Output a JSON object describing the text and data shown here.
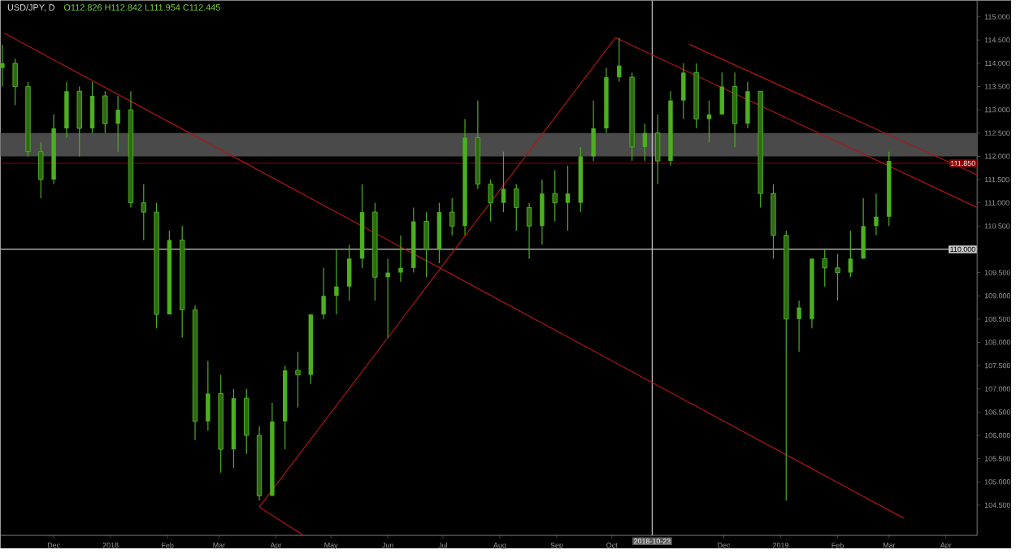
{
  "chart_data": {
    "type": "candlestick",
    "title": "USD/JPY, D",
    "subtitle": "O112.826 H112.842 L111.954 C112.445",
    "xlim": [
      "2017-11-02",
      "2019-04-18"
    ],
    "ylim": [
      103.85,
      115.35
    ],
    "xticks": [
      {
        "value": "2017-12-01",
        "label": "Dec"
      },
      {
        "value": "2018-01-01",
        "label": "2018"
      },
      {
        "value": "2018-02-01",
        "label": "Feb"
      },
      {
        "value": "2018-03-01",
        "label": "Mar"
      },
      {
        "value": "2018-04-01",
        "label": "Apr"
      },
      {
        "value": "2018-05-01",
        "label": "May"
      },
      {
        "value": "2018-06-01",
        "label": "Jun"
      },
      {
        "value": "2018-07-01",
        "label": "Jul"
      },
      {
        "value": "2018-08-01",
        "label": "Aug"
      },
      {
        "value": "2018-09-01",
        "label": "Sep"
      },
      {
        "value": "2018-10-01",
        "label": "Oct"
      },
      {
        "value": "2018-12-01",
        "label": "Dec"
      },
      {
        "value": "2019-01-01",
        "label": "2019"
      },
      {
        "value": "2019-02-01",
        "label": "Feb"
      },
      {
        "value": "2019-03-01",
        "label": "Mar"
      },
      {
        "value": "2019-04-01",
        "label": "Apr"
      }
    ],
    "yticks": [
      {
        "value": 104.5,
        "label": "104.500"
      },
      {
        "value": 105,
        "label": "105.000"
      },
      {
        "value": 105.5,
        "label": "105.500"
      },
      {
        "value": 106,
        "label": "106.000"
      },
      {
        "value": 106.5,
        "label": "106.500"
      },
      {
        "value": 107,
        "label": "107.000"
      },
      {
        "value": 107.5,
        "label": "107.500"
      },
      {
        "value": 108,
        "label": "108.000"
      },
      {
        "value": 108.5,
        "label": "108.500"
      },
      {
        "value": 109,
        "label": "109.000"
      },
      {
        "value": 109.5,
        "label": "109.500"
      },
      {
        "value": 110.5,
        "label": "110.500"
      },
      {
        "value": 111,
        "label": "111.000"
      },
      {
        "value": 111.5,
        "label": "111.500"
      },
      {
        "value": 112,
        "label": "112.000"
      },
      {
        "value": 112.5,
        "label": "112.500"
      },
      {
        "value": 113,
        "label": "113.000"
      },
      {
        "value": 113.5,
        "label": "113.500"
      },
      {
        "value": 114,
        "label": "114.000"
      },
      {
        "value": 114.5,
        "label": "114.500"
      },
      {
        "value": 115,
        "label": "115.000"
      }
    ],
    "bands": [
      {
        "axis": "y",
        "from": 112.0,
        "to": 112.5,
        "color": "#4a4a4a"
      }
    ],
    "ref_lines": [
      {
        "axis": "y",
        "value": 111.85,
        "label": "111.850",
        "color": "#8b0000"
      },
      {
        "axis": "y",
        "value": 110.0,
        "label": "110.000",
        "color": "#c8c8c8"
      },
      {
        "axis": "x",
        "value": "2018-10-23",
        "label": "2018-10-23",
        "color": "#c8c8c8"
      }
    ],
    "series": [
      {
        "color": "#4caf1f",
        "x": [
          "2017-11-03",
          "2017-11-10",
          "2017-11-17",
          "2017-11-24",
          "2017-12-01",
          "2017-12-08",
          "2017-12-15",
          "2017-12-22",
          "2017-12-29",
          "2018-01-05",
          "2018-01-12",
          "2018-01-19",
          "2018-01-26",
          "2018-02-02",
          "2018-02-09",
          "2018-02-16",
          "2018-02-23",
          "2018-03-02",
          "2018-03-09",
          "2018-03-16",
          "2018-03-23",
          "2018-03-30",
          "2018-04-06",
          "2018-04-13",
          "2018-04-20",
          "2018-04-27",
          "2018-05-04",
          "2018-05-11",
          "2018-05-18",
          "2018-05-25",
          "2018-06-01",
          "2018-06-08",
          "2018-06-15",
          "2018-06-22",
          "2018-06-29",
          "2018-07-06",
          "2018-07-13",
          "2018-07-20",
          "2018-07-27",
          "2018-08-03",
          "2018-08-10",
          "2018-08-17",
          "2018-08-24",
          "2018-08-31",
          "2018-09-07",
          "2018-09-14",
          "2018-09-21",
          "2018-09-28",
          "2018-10-05",
          "2018-10-12",
          "2018-10-19",
          "2018-10-26",
          "2018-11-02",
          "2018-11-09",
          "2018-11-16",
          "2018-11-23",
          "2018-11-30",
          "2018-12-07",
          "2018-12-14",
          "2018-12-21",
          "2018-12-28",
          "2019-01-04",
          "2019-01-11",
          "2019-01-18",
          "2019-01-25",
          "2019-02-01",
          "2019-02-08",
          "2019-02-15",
          "2019-02-22",
          "2019-03-01"
        ],
        "ohlc": [
          [
            113.9,
            114.4,
            113.5,
            114.0
          ],
          [
            114.0,
            114.1,
            113.1,
            113.5
          ],
          [
            113.5,
            113.6,
            112.0,
            112.1
          ],
          [
            112.1,
            112.3,
            111.1,
            111.5
          ],
          [
            111.5,
            112.9,
            111.4,
            112.6
          ],
          [
            112.6,
            113.6,
            112.4,
            113.4
          ],
          [
            113.4,
            113.5,
            112.0,
            112.6
          ],
          [
            112.6,
            113.6,
            112.5,
            113.3
          ],
          [
            113.3,
            113.4,
            112.5,
            112.7
          ],
          [
            112.7,
            113.3,
            112.1,
            113.0
          ],
          [
            113.0,
            113.4,
            110.9,
            111.0
          ],
          [
            111.0,
            111.4,
            110.2,
            110.8
          ],
          [
            110.8,
            111.0,
            108.3,
            108.6
          ],
          [
            108.6,
            110.4,
            108.6,
            110.2
          ],
          [
            110.2,
            110.5,
            108.1,
            108.7
          ],
          [
            108.7,
            108.8,
            105.9,
            106.3
          ],
          [
            106.3,
            107.6,
            106.1,
            106.9
          ],
          [
            106.9,
            107.3,
            105.2,
            105.7
          ],
          [
            105.7,
            107.0,
            105.3,
            106.8
          ],
          [
            106.8,
            107.0,
            105.6,
            106.0
          ],
          [
            106.0,
            106.2,
            104.6,
            104.7
          ],
          [
            104.7,
            106.7,
            104.7,
            106.3
          ],
          [
            106.3,
            107.5,
            105.7,
            107.4
          ],
          [
            107.4,
            107.8,
            106.6,
            107.3
          ],
          [
            107.3,
            108.6,
            107.1,
            108.6
          ],
          [
            108.6,
            109.6,
            108.5,
            109.0
          ],
          [
            109.0,
            110.0,
            108.6,
            109.2
          ],
          [
            109.2,
            110.1,
            108.9,
            109.8
          ],
          [
            109.8,
            111.4,
            109.6,
            110.8
          ],
          [
            110.8,
            111.0,
            108.9,
            109.4
          ],
          [
            109.4,
            109.8,
            108.1,
            109.5
          ],
          [
            109.5,
            110.3,
            109.3,
            109.6
          ],
          [
            109.6,
            110.9,
            109.5,
            110.6
          ],
          [
            110.6,
            110.8,
            109.4,
            110.0
          ],
          [
            110.0,
            111.0,
            109.7,
            110.8
          ],
          [
            110.8,
            111.1,
            110.3,
            110.5
          ],
          [
            110.5,
            112.8,
            110.3,
            112.4
          ],
          [
            112.4,
            113.2,
            111.3,
            111.4
          ],
          [
            111.4,
            111.5,
            110.6,
            111.0
          ],
          [
            111.0,
            112.1,
            110.8,
            111.3
          ],
          [
            111.3,
            111.4,
            110.4,
            110.9
          ],
          [
            110.9,
            111.0,
            109.8,
            110.5
          ],
          [
            110.5,
            111.5,
            110.1,
            111.2
          ],
          [
            111.2,
            111.7,
            110.6,
            111.0
          ],
          [
            111.0,
            111.8,
            110.4,
            111.2
          ],
          [
            111.0,
            112.2,
            110.8,
            112.0
          ],
          [
            112.0,
            113.2,
            111.9,
            112.6
          ],
          [
            112.6,
            113.9,
            112.5,
            113.7
          ],
          [
            113.7,
            114.55,
            113.6,
            113.95
          ],
          [
            113.7,
            113.8,
            111.9,
            112.2
          ],
          [
            112.2,
            112.7,
            111.9,
            112.5
          ],
          [
            112.5,
            112.9,
            111.4,
            111.9
          ],
          [
            111.9,
            113.4,
            111.8,
            113.2
          ],
          [
            113.2,
            114.0,
            112.8,
            113.8
          ],
          [
            113.8,
            114.0,
            112.6,
            112.8
          ],
          [
            112.8,
            113.2,
            112.3,
            112.9
          ],
          [
            112.9,
            113.8,
            112.9,
            113.5
          ],
          [
            113.5,
            113.8,
            112.2,
            112.7
          ],
          [
            112.7,
            113.6,
            112.6,
            113.4
          ],
          [
            113.4,
            113.4,
            110.9,
            111.2
          ],
          [
            111.2,
            111.4,
            109.8,
            110.3
          ],
          [
            110.3,
            110.4,
            104.6,
            108.5
          ],
          [
            108.5,
            108.9,
            107.8,
            108.75
          ],
          [
            108.5,
            109.8,
            108.3,
            109.8
          ],
          [
            109.8,
            110.0,
            109.2,
            109.6
          ],
          [
            109.6,
            109.9,
            108.9,
            109.5
          ],
          [
            109.5,
            110.4,
            109.4,
            109.8
          ],
          [
            109.8,
            111.1,
            109.8,
            110.5
          ],
          [
            110.5,
            111.2,
            110.3,
            110.7
          ],
          [
            110.7,
            112.1,
            110.5,
            111.9
          ]
        ]
      },
      {
        "type": "line",
        "color": "#b01515",
        "x": [
          "2017-11-04",
          "2019-03-09"
        ],
        "values": [
          114.65,
          104.22
        ]
      },
      {
        "type": "line",
        "color": "#b01515",
        "x": [
          "2018-03-23",
          "2018-10-03"
        ],
        "values": [
          104.46,
          114.55
        ]
      },
      {
        "type": "line",
        "color": "#b01515",
        "x": [
          "2018-03-23",
          "2018-04-16"
        ],
        "values": [
          104.46,
          103.85
        ]
      },
      {
        "type": "line",
        "color": "#b01515",
        "x": [
          "2018-10-03",
          "2019-04-18"
        ],
        "values": [
          114.55,
          110.9
        ]
      },
      {
        "type": "line",
        "color": "#b01515",
        "x": [
          "2018-11-12",
          "2019-04-18"
        ],
        "values": [
          114.41,
          111.6
        ]
      }
    ]
  }
}
